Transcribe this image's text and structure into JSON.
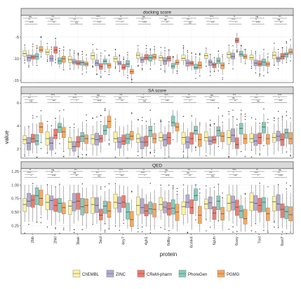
{
  "chart_data": {
    "type": "box",
    "ylabel": "value",
    "xlabel": "protein",
    "categories": [
      "2bb",
      "2hkl",
      "3bak",
      "3aul",
      "4ey7",
      "4gh1",
      "6dlby",
      "6cmk4",
      "6guh",
      "6uwy",
      "7oxl",
      "8oxt7"
    ],
    "legend": [
      "ChEMBL",
      "ZINC",
      "CReM-pharm",
      "PhoreGen",
      "PGMG"
    ],
    "legend_placement": "bottom",
    "colors": [
      "#fbf3a4",
      "#b3abd1",
      "#ee7b6f",
      "#87cbbd",
      "#f5a85f"
    ],
    "facets": [
      {
        "title": "docking score",
        "ylim": [
          -15.5,
          0
        ],
        "yticks": [
          -5,
          -10,
          -15
        ],
        "medians": [
          [
            -8.8,
            -9.8,
            -9.6,
            -9.5,
            -8.0
          ],
          [
            -8.5,
            -10.0,
            -8.0,
            -10.5,
            -10.0
          ],
          [
            -10.2,
            -10.8,
            -11.0,
            -10.9,
            -11.2
          ],
          [
            -9.3,
            -11.0,
            -11.8,
            -10.6,
            -11.5
          ],
          [
            -10.0,
            -11.0,
            -12.0,
            -11.2,
            -13.0
          ],
          [
            -9.2,
            -10.2,
            -9.8,
            -9.8,
            -9.6
          ],
          [
            -9.8,
            -10.5,
            -9.9,
            -11.7,
            -10.9
          ],
          [
            -9.9,
            -11.0,
            -11.0,
            -12.0,
            -11.5
          ],
          [
            -9.3,
            -10.8,
            -11.4,
            -10.5,
            -11.5
          ],
          [
            -9.0,
            -9.5,
            -5.8,
            -9.0,
            -9.5
          ],
          [
            -9.8,
            -11.0,
            -11.2,
            -10.8,
            -11.2
          ],
          [
            -9.2,
            -10.0,
            -9.5,
            -9.0,
            -8.5
          ]
        ]
      },
      {
        "title": "SA score",
        "ylim": [
          1.2,
          6.8
        ],
        "yticks": [
          2,
          4,
          6
        ],
        "medians": [
          [
            2.8,
            2.5,
            2.9,
            2.7,
            3.9
          ],
          [
            2.9,
            2.5,
            3.2,
            3.9,
            3.5
          ],
          [
            2.6,
            2.2,
            2.6,
            3.1,
            2.9
          ],
          [
            2.9,
            2.8,
            2.9,
            3.6,
            4.4
          ],
          [
            2.9,
            2.6,
            2.7,
            2.9,
            3.1
          ],
          [
            2.9,
            2.6,
            2.6,
            3.6,
            2.9
          ],
          [
            3.0,
            2.8,
            3.0,
            4.3,
            3.9
          ],
          [
            3.0,
            2.6,
            2.9,
            3.6,
            2.8
          ],
          [
            3.0,
            2.7,
            2.8,
            3.6,
            3.1
          ],
          [
            3.0,
            3.2,
            2.4,
            3.8,
            2.9
          ],
          [
            2.9,
            2.7,
            3.0,
            3.9,
            2.9
          ],
          [
            3.0,
            3.1,
            2.8,
            3.4,
            2.9
          ]
        ]
      },
      {
        "title": "QED",
        "ylim": [
          0.1,
          1.3
        ],
        "yticks": [
          0.25,
          0.5,
          0.75,
          1.0,
          1.25
        ],
        "ytick_labels": [
          "0.25",
          "0.50",
          "0.75",
          "1.00",
          "1.25"
        ],
        "medians": [
          [
            0.64,
            0.7,
            0.72,
            0.8,
            0.75
          ],
          [
            0.68,
            0.71,
            0.62,
            0.66,
            0.58
          ],
          [
            0.61,
            0.68,
            0.7,
            0.6,
            0.62
          ],
          [
            0.64,
            0.62,
            0.44,
            0.61,
            0.52
          ],
          [
            0.68,
            0.66,
            0.68,
            0.5,
            0.36
          ],
          [
            0.62,
            0.58,
            0.52,
            0.56,
            0.55
          ],
          [
            0.64,
            0.59,
            0.56,
            0.57,
            0.5
          ],
          [
            0.6,
            0.68,
            0.58,
            0.8,
            0.44
          ],
          [
            0.65,
            0.67,
            0.48,
            0.7,
            0.47
          ],
          [
            0.66,
            0.68,
            0.59,
            0.52,
            0.38
          ],
          [
            0.68,
            0.66,
            0.62,
            0.68,
            0.47
          ],
          [
            0.69,
            0.65,
            0.55,
            0.51,
            0.45
          ]
        ]
      }
    ],
    "significance_symbols": [
      "ns",
      "*",
      "**",
      "***",
      "****"
    ]
  }
}
